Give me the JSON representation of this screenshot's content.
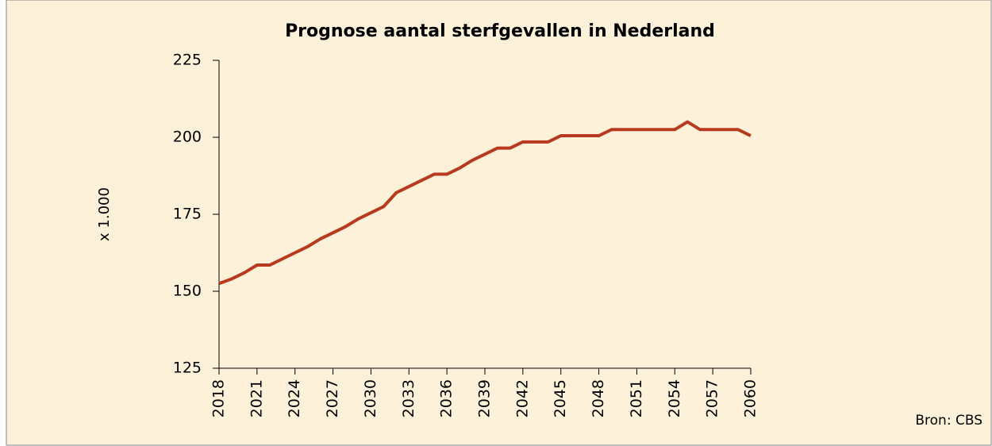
{
  "chart_data": {
    "type": "line",
    "title": "Prognose aantal sterfgevallen in Nederland",
    "y_label": "x 1.000",
    "source": "Bron: CBS",
    "x": [
      2018,
      2019,
      2020,
      2021,
      2022,
      2023,
      2024,
      2025,
      2026,
      2027,
      2028,
      2029,
      2030,
      2031,
      2032,
      2033,
      2034,
      2035,
      2036,
      2037,
      2038,
      2039,
      2040,
      2041,
      2042,
      2043,
      2044,
      2045,
      2046,
      2047,
      2048,
      2049,
      2050,
      2051,
      2052,
      2053,
      2054,
      2055,
      2056,
      2057,
      2058,
      2059,
      2060
    ],
    "series": [
      {
        "name": "Sterfgevallen",
        "color": "#b83a1e",
        "values": [
          152.5,
          154,
          156,
          158.5,
          158.5,
          160.5,
          162.5,
          164.5,
          167,
          169,
          171,
          173.5,
          175.5,
          177.5,
          182,
          184,
          186,
          188,
          188,
          190,
          192.5,
          194.5,
          196.5,
          196.5,
          198.5,
          198.5,
          198.5,
          200.5,
          200.5,
          200.5,
          200.5,
          202.5,
          202.5,
          202.5,
          202.5,
          202.5,
          202.5,
          205,
          202.5,
          202.5,
          202.5,
          202.5,
          200.5
        ]
      }
    ],
    "xlim": [
      2018,
      2060
    ],
    "xticks": [
      2018,
      2021,
      2024,
      2027,
      2030,
      2033,
      2036,
      2039,
      2042,
      2045,
      2048,
      2051,
      2054,
      2057,
      2060
    ],
    "ylim": [
      125,
      225
    ],
    "yticks": [
      125,
      150,
      175,
      200,
      225
    ],
    "grid": false
  }
}
